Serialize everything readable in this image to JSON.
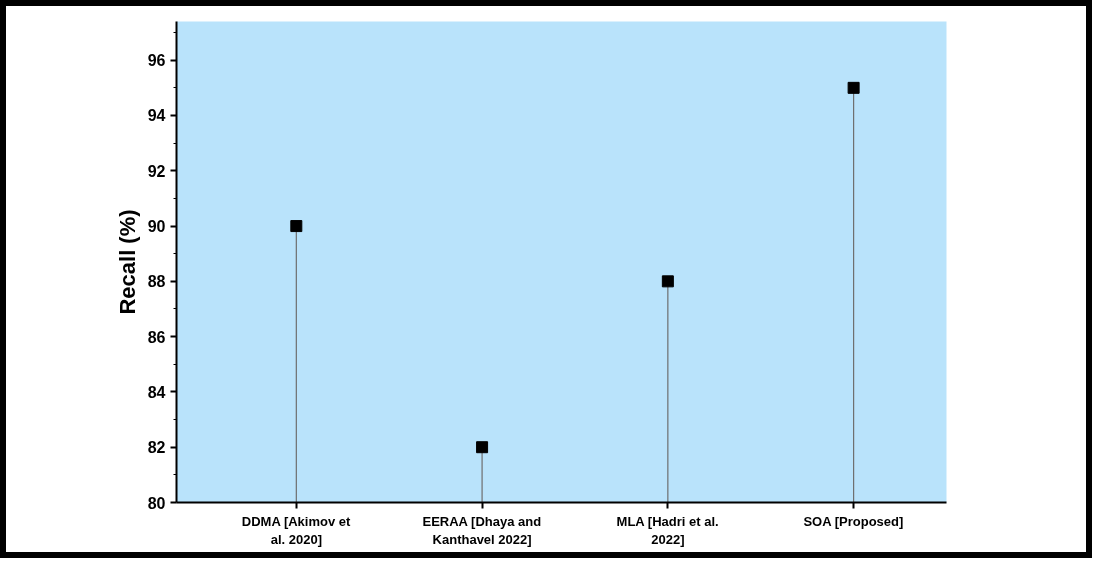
{
  "chart_data": {
    "type": "lollipop",
    "ylabel": "Recall (%)",
    "categories": [
      "DDMA [Akimov et\nal. 2020]",
      "EERAA [Dhaya and\nKanthavel 2022]",
      "MLA [Hadri et al.\n2022]",
      "SOA [Proposed]"
    ],
    "series": [
      {
        "color": "#000000",
        "values": [
          90,
          82,
          88,
          95
        ]
      }
    ],
    "ylim": [
      80,
      97.4
    ],
    "yticks": [
      80,
      82,
      84,
      86,
      88,
      90,
      92,
      94,
      96
    ],
    "marker": "square"
  }
}
